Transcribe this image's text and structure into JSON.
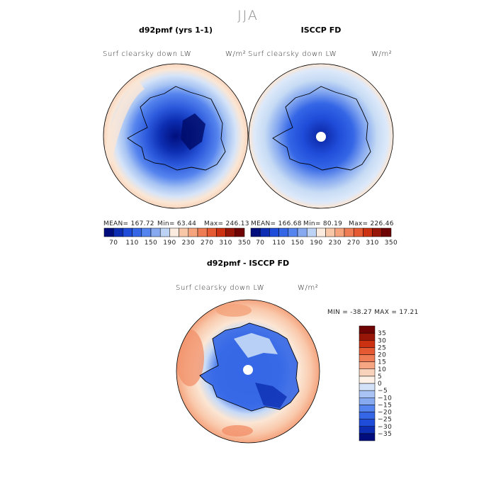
{
  "figure": {
    "season": "JJA",
    "colors": {
      "ocean_cold": "#c6dbf4",
      "ocean_warm": "#f9dcc4",
      "land_outline": "#000000"
    }
  },
  "chart_data": [
    {
      "type": "heatmap",
      "title": "d92pmf (yrs 1-1)",
      "variable": "Surf clearsky down LW",
      "units": "W/m²",
      "projection": "south-polar-stereographic",
      "stats": {
        "mean_label": "MEAN= 167.72",
        "min_label": "Min= 63.44",
        "max_label": "Max= 246.13"
      },
      "colorbar": {
        "orientation": "horizontal",
        "colors": [
          "#000e7d",
          "#0d2eb2",
          "#1f4cd9",
          "#3466e6",
          "#5584ee",
          "#86a9f0",
          "#bdd3f6",
          "#fbecdf",
          "#f7c7a8",
          "#f5a47e",
          "#ee7c55",
          "#e65a33",
          "#cc3111",
          "#981608",
          "#6f0404"
        ],
        "tick_labels": [
          "70",
          "110",
          "150",
          "190",
          "230",
          "270",
          "310",
          "350"
        ]
      }
    },
    {
      "type": "heatmap",
      "title": "ISCCP FD",
      "variable": "Surf clearsky down LW",
      "units": "W/m²",
      "projection": "south-polar-stereographic",
      "stats": {
        "mean_label": "MEAN= 166.68",
        "min_label": "Min= 80.19",
        "max_label": "Max= 226.46"
      },
      "colorbar": {
        "orientation": "horizontal",
        "colors": [
          "#000e7d",
          "#0d2eb2",
          "#1f4cd9",
          "#3466e6",
          "#5584ee",
          "#86a9f0",
          "#bdd3f6",
          "#fbecdf",
          "#f7c7a8",
          "#f5a47e",
          "#ee7c55",
          "#e65a33",
          "#cc3111",
          "#981608",
          "#6f0404"
        ],
        "tick_labels": [
          "70",
          "110",
          "150",
          "190",
          "230",
          "270",
          "310",
          "350"
        ]
      }
    },
    {
      "type": "heatmap",
      "title": "d92pmf - ISCCP FD",
      "variable": "Surf clearsky down LW",
      "units": "W/m²",
      "projection": "south-polar-stereographic",
      "stats": {
        "minmax_label": "MIN = -38.27 MAX =  17.21"
      },
      "colorbar": {
        "orientation": "vertical",
        "colors": [
          "#000e7d",
          "#0d2eb2",
          "#1f4cd9",
          "#3466e6",
          "#5584ee",
          "#86a9f0",
          "#a9c4f4",
          "#d2e1f8",
          "#fdf0e6",
          "#f9d2bb",
          "#f6a683",
          "#ee7c55",
          "#e65a33",
          "#cc3111",
          "#981608",
          "#6f0404"
        ],
        "tick_labels": [
          "35",
          "30",
          "25",
          "20",
          "15",
          "10",
          "5",
          "0",
          "−5",
          "−10",
          "−15",
          "−20",
          "−25",
          "−30",
          "−35"
        ]
      }
    }
  ]
}
